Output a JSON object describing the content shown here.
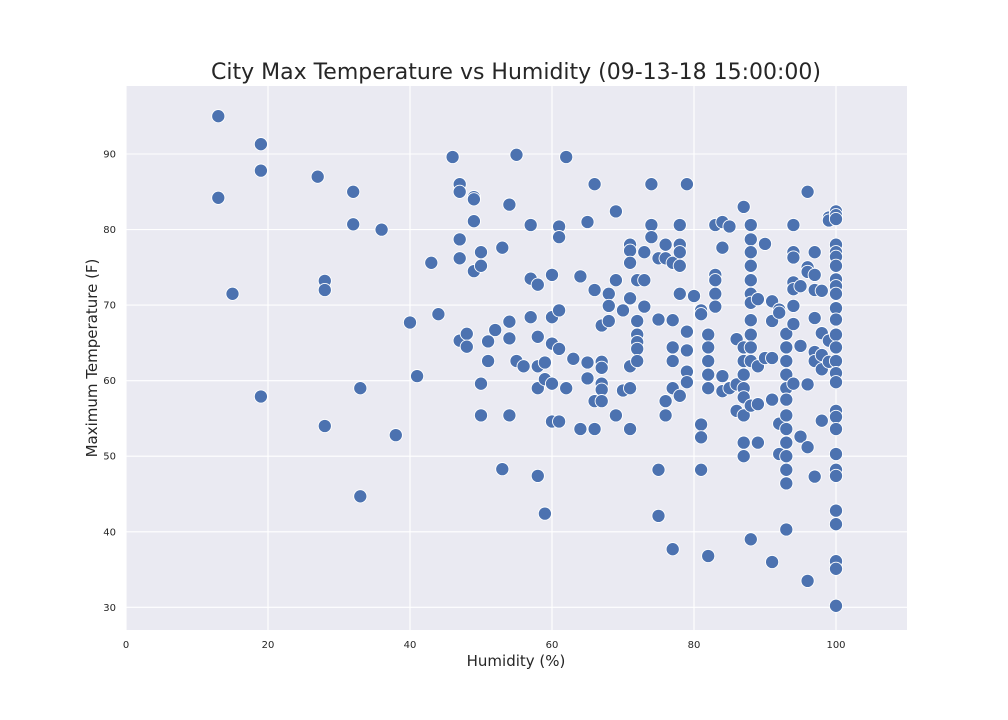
{
  "chart_data": {
    "type": "scatter",
    "title": "City Max Temperature vs Humidity (09-13-18 15:00:00)",
    "xlabel": "Humidity (%)",
    "ylabel": "Maximum Temperature (F)",
    "xlim": [
      0,
      110
    ],
    "ylim": [
      27,
      99
    ],
    "xticks": [
      0,
      20,
      40,
      60,
      80,
      100
    ],
    "yticks": [
      30,
      40,
      50,
      60,
      70,
      80,
      90
    ],
    "grid": true,
    "point_color": "#4c72b0",
    "background_color": "#eaeaf2",
    "points": [
      [
        13,
        95
      ],
      [
        13,
        84.2
      ],
      [
        15,
        71.5
      ],
      [
        19,
        91.3
      ],
      [
        19,
        87.8
      ],
      [
        19,
        57.9
      ],
      [
        27,
        87
      ],
      [
        28,
        73.2
      ],
      [
        28,
        72
      ],
      [
        28,
        54
      ],
      [
        32,
        85
      ],
      [
        32,
        80.7
      ],
      [
        33,
        59
      ],
      [
        33,
        44.7
      ],
      [
        36,
        80
      ],
      [
        38,
        52.8
      ],
      [
        40,
        67.7
      ],
      [
        41,
        60.6
      ],
      [
        43,
        75.6
      ],
      [
        44,
        68.8
      ],
      [
        46,
        89.6
      ],
      [
        47,
        86
      ],
      [
        47,
        85
      ],
      [
        47,
        78.7
      ],
      [
        47,
        76.2
      ],
      [
        47,
        65.3
      ],
      [
        48,
        66.2
      ],
      [
        48,
        64.5
      ],
      [
        49,
        84.3
      ],
      [
        49,
        84
      ],
      [
        49,
        81.1
      ],
      [
        49,
        74.5
      ],
      [
        50,
        77
      ],
      [
        50,
        75.2
      ],
      [
        50,
        59.6
      ],
      [
        50,
        55.4
      ],
      [
        51,
        65.2
      ],
      [
        51,
        62.6
      ],
      [
        52,
        66.7
      ],
      [
        53,
        77.6
      ],
      [
        53,
        48.3
      ],
      [
        54,
        83.3
      ],
      [
        54,
        67.8
      ],
      [
        54,
        65.6
      ],
      [
        54,
        55.4
      ],
      [
        55,
        89.9
      ],
      [
        55,
        62.6
      ],
      [
        56,
        61.9
      ],
      [
        57,
        80.6
      ],
      [
        57,
        73.5
      ],
      [
        57,
        68.4
      ],
      [
        58,
        72.7
      ],
      [
        58,
        65.8
      ],
      [
        58,
        61.9
      ],
      [
        58,
        59
      ],
      [
        58,
        47.4
      ],
      [
        59,
        62.4
      ],
      [
        59,
        60.2
      ],
      [
        59,
        42.4
      ],
      [
        60,
        74
      ],
      [
        60,
        68.4
      ],
      [
        60,
        64.9
      ],
      [
        60,
        59.6
      ],
      [
        60,
        54.6
      ],
      [
        61,
        80.4
      ],
      [
        61,
        79
      ],
      [
        61,
        69.3
      ],
      [
        61,
        64.2
      ],
      [
        61,
        54.6
      ],
      [
        62,
        89.6
      ],
      [
        62,
        59
      ],
      [
        63,
        62.9
      ],
      [
        64,
        73.8
      ],
      [
        64,
        53.6
      ],
      [
        65,
        81
      ],
      [
        65,
        62.4
      ],
      [
        65,
        60.3
      ],
      [
        66,
        86
      ],
      [
        66,
        72
      ],
      [
        66,
        57.3
      ],
      [
        66,
        53.6
      ],
      [
        67,
        67.3
      ],
      [
        67,
        62.5
      ],
      [
        67,
        61.7
      ],
      [
        67,
        59.6
      ],
      [
        67,
        58.8
      ],
      [
        67,
        57.3
      ],
      [
        68,
        71.5
      ],
      [
        68,
        69.9
      ],
      [
        68,
        67.9
      ],
      [
        69,
        82.4
      ],
      [
        69,
        73.3
      ],
      [
        69,
        55.4
      ],
      [
        70,
        69.3
      ],
      [
        70,
        58.7
      ],
      [
        71,
        78
      ],
      [
        71,
        77.2
      ],
      [
        71,
        75.6
      ],
      [
        71,
        70.9
      ],
      [
        71,
        61.9
      ],
      [
        71,
        59
      ],
      [
        71,
        53.6
      ],
      [
        72,
        73.3
      ],
      [
        72,
        67.9
      ],
      [
        72,
        66.1
      ],
      [
        72,
        65.1
      ],
      [
        72,
        64.2
      ],
      [
        72,
        62.6
      ],
      [
        73,
        77
      ],
      [
        73,
        73.3
      ],
      [
        73,
        69.8
      ],
      [
        74,
        86
      ],
      [
        74,
        80.6
      ],
      [
        74,
        79
      ],
      [
        75,
        76.2
      ],
      [
        75,
        68.1
      ],
      [
        75,
        48.2
      ],
      [
        75,
        42.1
      ],
      [
        76,
        78
      ],
      [
        76,
        76.2
      ],
      [
        76,
        57.3
      ],
      [
        76,
        55.4
      ],
      [
        77,
        75.6
      ],
      [
        77,
        68
      ],
      [
        77,
        64.4
      ],
      [
        77,
        62.6
      ],
      [
        77,
        59
      ],
      [
        77,
        37.7
      ],
      [
        78,
        80.6
      ],
      [
        78,
        78
      ],
      [
        78,
        77
      ],
      [
        78,
        75.2
      ],
      [
        78,
        71.5
      ],
      [
        78,
        58
      ],
      [
        79,
        86
      ],
      [
        79,
        66.5
      ],
      [
        79,
        64
      ],
      [
        79,
        61.2
      ],
      [
        79,
        59.8
      ],
      [
        80,
        71.2
      ],
      [
        81,
        69.3
      ],
      [
        81,
        68.8
      ],
      [
        81,
        54.2
      ],
      [
        81,
        52.5
      ],
      [
        81,
        48.2
      ],
      [
        82,
        66.1
      ],
      [
        82,
        64.4
      ],
      [
        82,
        62.6
      ],
      [
        82,
        60.8
      ],
      [
        82,
        59
      ],
      [
        82,
        36.8
      ],
      [
        83,
        80.6
      ],
      [
        83,
        74
      ],
      [
        83,
        73.3
      ],
      [
        83,
        71.5
      ],
      [
        83,
        69.8
      ],
      [
        84,
        81
      ],
      [
        84,
        77.6
      ],
      [
        84,
        60.6
      ],
      [
        84,
        58.6
      ],
      [
        85,
        80.4
      ],
      [
        85,
        59
      ],
      [
        86,
        65.5
      ],
      [
        86,
        59.5
      ],
      [
        86,
        56
      ],
      [
        87,
        83
      ],
      [
        87,
        64.4
      ],
      [
        87,
        62.6
      ],
      [
        87,
        60.8
      ],
      [
        87,
        59
      ],
      [
        87,
        57.8
      ],
      [
        87,
        55.4
      ],
      [
        87,
        51.8
      ],
      [
        87,
        50
      ],
      [
        88,
        80.6
      ],
      [
        88,
        78.7
      ],
      [
        88,
        77
      ],
      [
        88,
        75.2
      ],
      [
        88,
        73.3
      ],
      [
        88,
        71.5
      ],
      [
        88,
        70.3
      ],
      [
        88,
        68
      ],
      [
        88,
        66.1
      ],
      [
        88,
        64.4
      ],
      [
        88,
        62.6
      ],
      [
        88,
        56.7
      ],
      [
        88,
        39
      ],
      [
        89,
        70.8
      ],
      [
        89,
        61.9
      ],
      [
        89,
        56.9
      ],
      [
        89,
        51.8
      ],
      [
        90,
        78.1
      ],
      [
        90,
        63
      ],
      [
        91,
        70.5
      ],
      [
        91,
        67.9
      ],
      [
        91,
        63
      ],
      [
        91,
        57.5
      ],
      [
        91,
        36
      ],
      [
        92,
        69.4
      ],
      [
        92,
        69
      ],
      [
        92,
        54.3
      ],
      [
        92,
        50.3
      ],
      [
        93,
        66.2
      ],
      [
        93,
        64.4
      ],
      [
        93,
        62.6
      ],
      [
        93,
        60.8
      ],
      [
        93,
        59
      ],
      [
        93,
        57.5
      ],
      [
        93,
        55.4
      ],
      [
        93,
        53.6
      ],
      [
        93,
        51.8
      ],
      [
        93,
        50
      ],
      [
        93,
        48.2
      ],
      [
        93,
        46.4
      ],
      [
        93,
        40.3
      ],
      [
        94,
        80.6
      ],
      [
        94,
        77
      ],
      [
        94,
        76.3
      ],
      [
        94,
        73
      ],
      [
        94,
        72.1
      ],
      [
        94,
        69.9
      ],
      [
        94,
        67.5
      ],
      [
        94,
        59.6
      ],
      [
        95,
        72.5
      ],
      [
        95,
        64.6
      ],
      [
        95,
        52.6
      ],
      [
        96,
        85
      ],
      [
        96,
        75
      ],
      [
        96,
        74.4
      ],
      [
        96,
        59.5
      ],
      [
        96,
        51.2
      ],
      [
        96,
        33.5
      ],
      [
        97,
        77
      ],
      [
        97,
        74
      ],
      [
        97,
        72
      ],
      [
        97,
        68.3
      ],
      [
        97,
        63.8
      ],
      [
        97,
        62.6
      ],
      [
        97,
        47.3
      ],
      [
        98,
        71.9
      ],
      [
        98,
        66.3
      ],
      [
        98,
        63.4
      ],
      [
        98,
        61.5
      ],
      [
        98,
        54.7
      ],
      [
        99,
        81.6
      ],
      [
        99,
        81.2
      ],
      [
        99,
        65.3
      ],
      [
        99,
        62.5
      ],
      [
        100,
        82.4
      ],
      [
        100,
        81.9
      ],
      [
        100,
        81.4
      ],
      [
        100,
        78
      ],
      [
        100,
        77
      ],
      [
        100,
        76.4
      ],
      [
        100,
        75.2
      ],
      [
        100,
        73.4
      ],
      [
        100,
        72.5
      ],
      [
        100,
        71.5
      ],
      [
        100,
        69.6
      ],
      [
        100,
        68.1
      ],
      [
        100,
        66.1
      ],
      [
        100,
        64.4
      ],
      [
        100,
        62.6
      ],
      [
        100,
        61
      ],
      [
        100,
        59.8
      ],
      [
        100,
        56
      ],
      [
        100,
        55.2
      ],
      [
        100,
        53.6
      ],
      [
        100,
        50.3
      ],
      [
        100,
        48.2
      ],
      [
        100,
        47.4
      ],
      [
        100,
        42.8
      ],
      [
        100,
        41
      ],
      [
        100,
        36.1
      ],
      [
        100,
        35.1
      ],
      [
        100,
        30.2
      ]
    ]
  }
}
